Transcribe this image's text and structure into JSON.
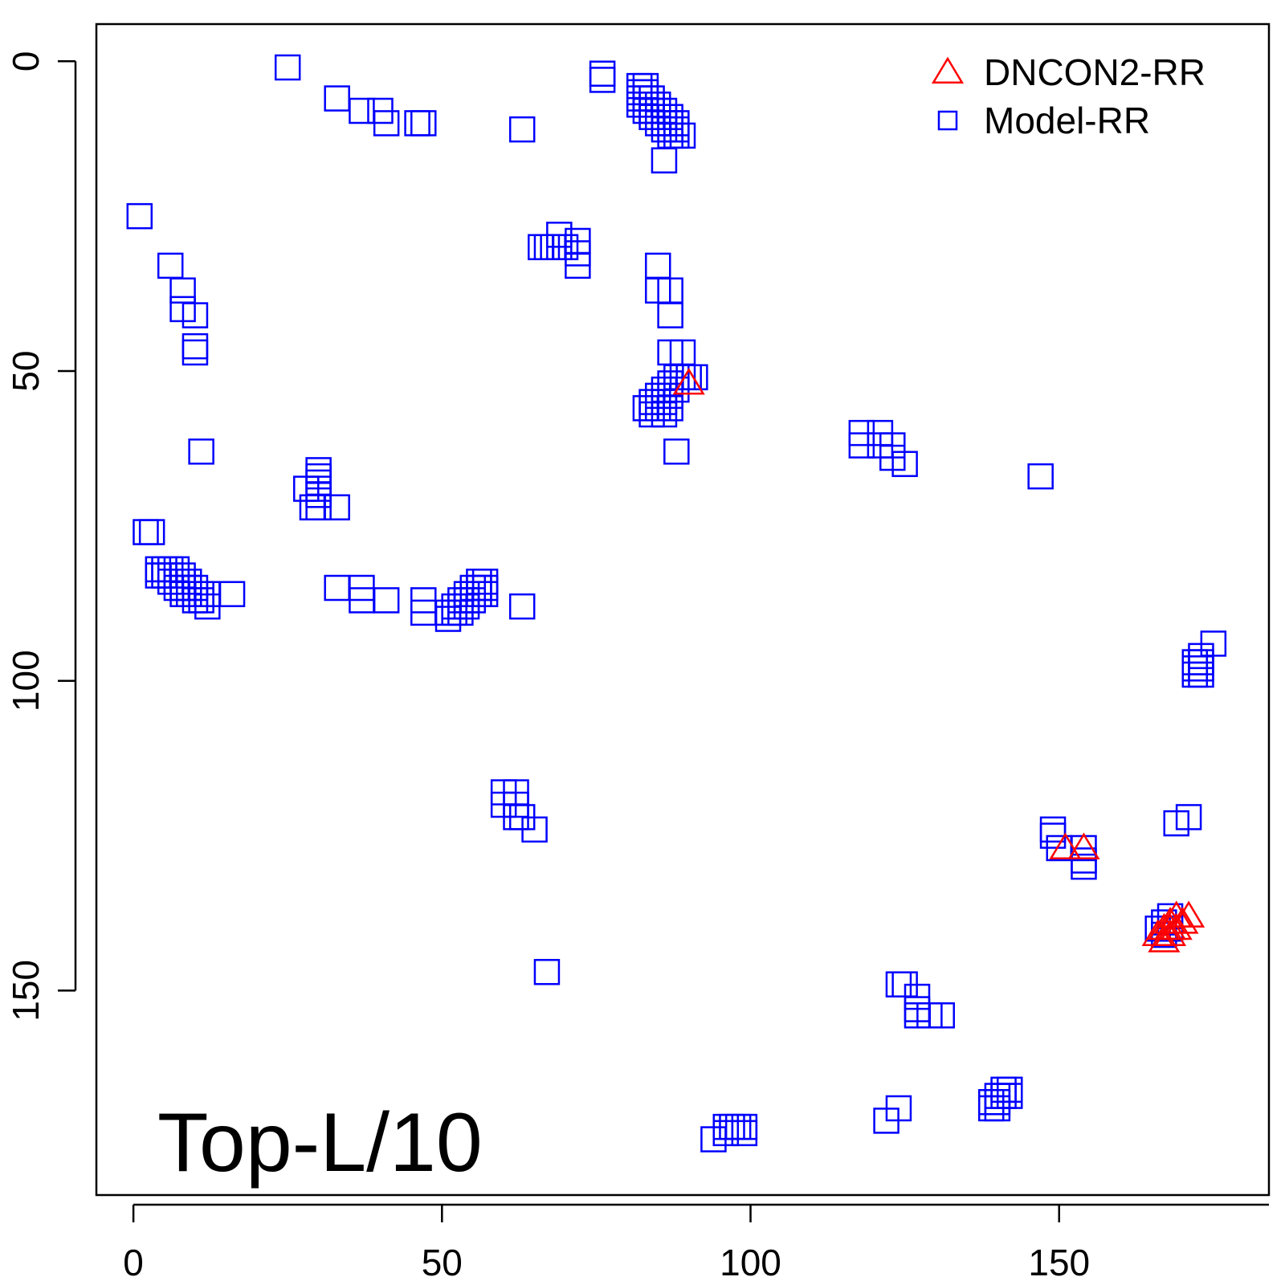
{
  "chart_data": {
    "type": "scatter",
    "title": "",
    "xlabel": "",
    "ylabel": "",
    "annotation": "Top-L/10",
    "xlim": [
      -6,
      184
    ],
    "ylim": [
      -6,
      183
    ],
    "y_reversed": true,
    "x_ticks": [
      0,
      50,
      100,
      150
    ],
    "x_tick_labels": [
      "0",
      "50",
      "100",
      "150"
    ],
    "y_ticks": [
      0,
      50,
      100,
      150
    ],
    "y_tick_labels": [
      "0",
      "50",
      "100",
      "150"
    ],
    "grid": false,
    "legend_position": "top-right",
    "series": [
      {
        "name": "DNCON2-RR",
        "marker": "triangle",
        "color": "#ff0000",
        "points": [
          [
            90,
            52
          ],
          [
            151,
            127
          ],
          [
            154,
            127
          ],
          [
            166,
            141
          ],
          [
            167,
            142
          ],
          [
            167,
            140
          ],
          [
            168,
            139
          ],
          [
            168,
            140
          ],
          [
            168,
            141
          ],
          [
            169,
            138
          ],
          [
            169,
            140
          ],
          [
            170,
            139
          ],
          [
            171,
            138
          ]
        ]
      },
      {
        "name": "Model-RR",
        "marker": "square",
        "color": "#0000ff",
        "points": [
          [
            25,
            1
          ],
          [
            33,
            6
          ],
          [
            37,
            8
          ],
          [
            40,
            8
          ],
          [
            41,
            10
          ],
          [
            46,
            10
          ],
          [
            47,
            10
          ],
          [
            63,
            11
          ],
          [
            76,
            2
          ],
          [
            76,
            3
          ],
          [
            82,
            4
          ],
          [
            82,
            5
          ],
          [
            82,
            6
          ],
          [
            82,
            7
          ],
          [
            83,
            4
          ],
          [
            83,
            5
          ],
          [
            83,
            6
          ],
          [
            83,
            7
          ],
          [
            83,
            8
          ],
          [
            84,
            6
          ],
          [
            84,
            7
          ],
          [
            84,
            8
          ],
          [
            84,
            9
          ],
          [
            85,
            7
          ],
          [
            85,
            8
          ],
          [
            85,
            9
          ],
          [
            85,
            10
          ],
          [
            86,
            8
          ],
          [
            86,
            9
          ],
          [
            86,
            10
          ],
          [
            86,
            11
          ],
          [
            87,
            9
          ],
          [
            87,
            10
          ],
          [
            87,
            11
          ],
          [
            87,
            12
          ],
          [
            88,
            10
          ],
          [
            88,
            11
          ],
          [
            88,
            12
          ],
          [
            89,
            12
          ],
          [
            86,
            16
          ],
          [
            1,
            25
          ],
          [
            66,
            30
          ],
          [
            67,
            30
          ],
          [
            68,
            30
          ],
          [
            69,
            28
          ],
          [
            69,
            30
          ],
          [
            70,
            30
          ],
          [
            72,
            29
          ],
          [
            72,
            31
          ],
          [
            72,
            33
          ],
          [
            6,
            33
          ],
          [
            8,
            37
          ],
          [
            8,
            40
          ],
          [
            10,
            41
          ],
          [
            10,
            46
          ],
          [
            10,
            47
          ],
          [
            85,
            33
          ],
          [
            85,
            37
          ],
          [
            87,
            37
          ],
          [
            87,
            41
          ],
          [
            87,
            47
          ],
          [
            89,
            47
          ],
          [
            83,
            56
          ],
          [
            84,
            55
          ],
          [
            84,
            57
          ],
          [
            85,
            54
          ],
          [
            85,
            56
          ],
          [
            86,
            53
          ],
          [
            86,
            55
          ],
          [
            86,
            57
          ],
          [
            87,
            52
          ],
          [
            87,
            54
          ],
          [
            87,
            56
          ],
          [
            88,
            51
          ],
          [
            88,
            53
          ],
          [
            89,
            51
          ],
          [
            90,
            51
          ],
          [
            91,
            51
          ],
          [
            88,
            63
          ],
          [
            11,
            63
          ],
          [
            118,
            60
          ],
          [
            118,
            62
          ],
          [
            121,
            60
          ],
          [
            121,
            62
          ],
          [
            123,
            62
          ],
          [
            123,
            64
          ],
          [
            125,
            65
          ],
          [
            147,
            67
          ],
          [
            30,
            66
          ],
          [
            30,
            67
          ],
          [
            30,
            68
          ],
          [
            30,
            69
          ],
          [
            30,
            70
          ],
          [
            28,
            69
          ],
          [
            29,
            72
          ],
          [
            30,
            72
          ],
          [
            33,
            72
          ],
          [
            2,
            76
          ],
          [
            3,
            76
          ],
          [
            4,
            82
          ],
          [
            4,
            83
          ],
          [
            5,
            82
          ],
          [
            5,
            83
          ],
          [
            6,
            82
          ],
          [
            6,
            83
          ],
          [
            6,
            84
          ],
          [
            7,
            82
          ],
          [
            7,
            84
          ],
          [
            7,
            85
          ],
          [
            8,
            83
          ],
          [
            8,
            84
          ],
          [
            8,
            85
          ],
          [
            8,
            86
          ],
          [
            9,
            84
          ],
          [
            9,
            85
          ],
          [
            9,
            86
          ],
          [
            10,
            85
          ],
          [
            10,
            86
          ],
          [
            10,
            87
          ],
          [
            11,
            86
          ],
          [
            11,
            87
          ],
          [
            12,
            86
          ],
          [
            12,
            88
          ],
          [
            16,
            86
          ],
          [
            33,
            85
          ],
          [
            37,
            85
          ],
          [
            37,
            87
          ],
          [
            41,
            87
          ],
          [
            47,
            87
          ],
          [
            47,
            89
          ],
          [
            51,
            89
          ],
          [
            51,
            90
          ],
          [
            52,
            88
          ],
          [
            52,
            89
          ],
          [
            53,
            87
          ],
          [
            53,
            88
          ],
          [
            53,
            89
          ],
          [
            54,
            86
          ],
          [
            54,
            87
          ],
          [
            54,
            88
          ],
          [
            55,
            85
          ],
          [
            55,
            86
          ],
          [
            55,
            87
          ],
          [
            56,
            84
          ],
          [
            56,
            85
          ],
          [
            56,
            86
          ],
          [
            57,
            84
          ],
          [
            57,
            85
          ],
          [
            57,
            86
          ],
          [
            63,
            88
          ],
          [
            175,
            94
          ],
          [
            172,
            97
          ],
          [
            172,
            98
          ],
          [
            172,
            99
          ],
          [
            173,
            96
          ],
          [
            173,
            97
          ],
          [
            173,
            98
          ],
          [
            173,
            99
          ],
          [
            60,
            118
          ],
          [
            60,
            120
          ],
          [
            62,
            118
          ],
          [
            62,
            120
          ],
          [
            62,
            122
          ],
          [
            63,
            122
          ],
          [
            65,
            124
          ],
          [
            149,
            124
          ],
          [
            149,
            125
          ],
          [
            150,
            127
          ],
          [
            154,
            127
          ],
          [
            154,
            129
          ],
          [
            154,
            130
          ],
          [
            169,
            123
          ],
          [
            171,
            122
          ],
          [
            166,
            140
          ],
          [
            167,
            139
          ],
          [
            167,
            141
          ],
          [
            168,
            138
          ],
          [
            168,
            140
          ],
          [
            67,
            147
          ],
          [
            124,
            149
          ],
          [
            125,
            149
          ],
          [
            127,
            151
          ],
          [
            127,
            153
          ],
          [
            127,
            154
          ],
          [
            129,
            154
          ],
          [
            131,
            154
          ],
          [
            139,
            168
          ],
          [
            139,
            169
          ],
          [
            140,
            167
          ],
          [
            140,
            168
          ],
          [
            140,
            169
          ],
          [
            141,
            166
          ],
          [
            141,
            167
          ],
          [
            142,
            166
          ],
          [
            142,
            167
          ],
          [
            122,
            171
          ],
          [
            124,
            169
          ],
          [
            94,
            174
          ],
          [
            96,
            172
          ],
          [
            96,
            173
          ],
          [
            97,
            172
          ],
          [
            98,
            172
          ],
          [
            99,
            172
          ],
          [
            99,
            173
          ]
        ]
      }
    ]
  }
}
